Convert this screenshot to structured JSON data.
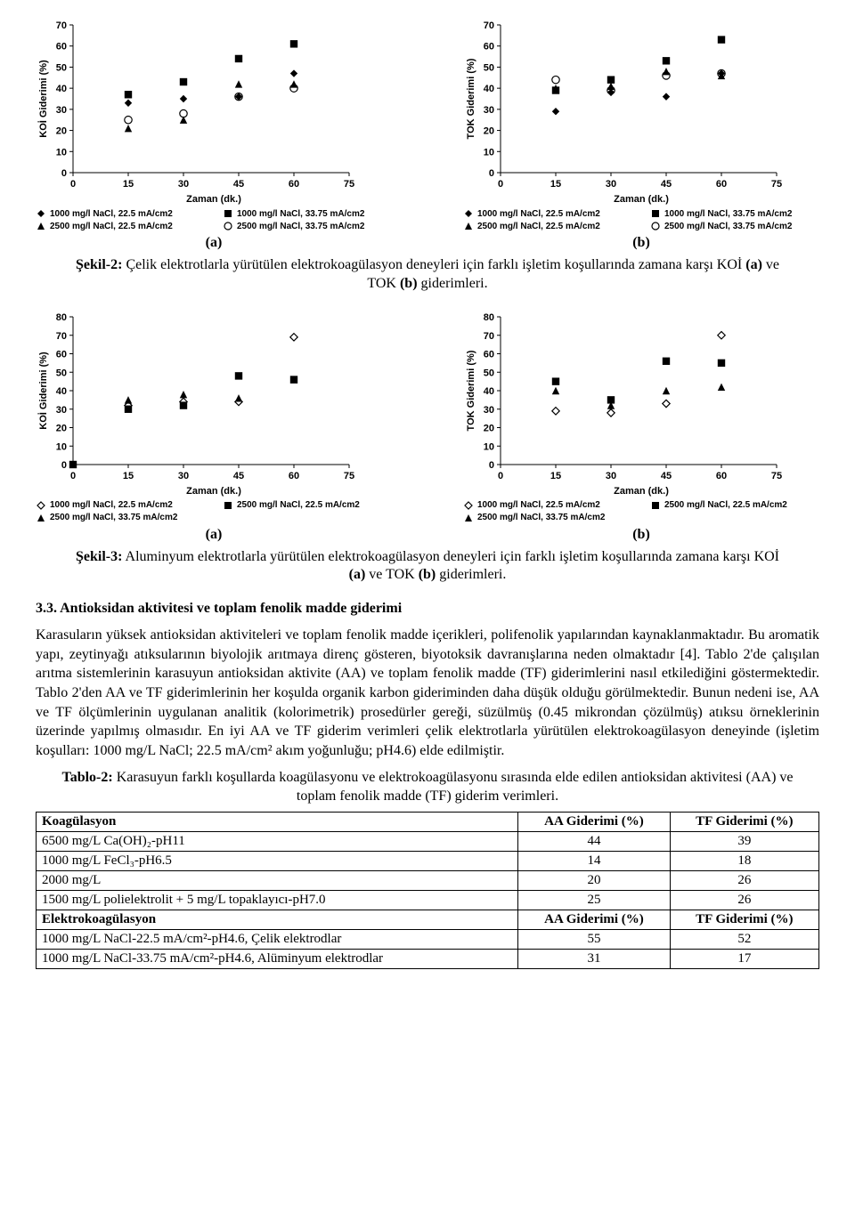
{
  "fig2": {
    "common": {
      "xlabel": "Zaman (dk.)",
      "xlim": [
        0,
        75
      ],
      "xticks": [
        0,
        15,
        30,
        45,
        60,
        75
      ],
      "ylim": [
        0,
        70
      ],
      "yticks": [
        0,
        10,
        20,
        30,
        40,
        50,
        60,
        70
      ],
      "tick_fontsize": 11,
      "label_fontsize": 11,
      "background": "#ffffff",
      "axis_color": "#000000",
      "marker_size": 6
    },
    "charts": [
      {
        "sublabel": "(a)",
        "ylabel": "KOİ Giderimi (%)",
        "series": [
          {
            "label": "1000 mg/l NaCl, 22.5 mA/cm2",
            "marker": "diamond-filled",
            "points": [
              [
                15,
                33
              ],
              [
                30,
                35
              ],
              [
                45,
                36
              ],
              [
                60,
                47
              ]
            ]
          },
          {
            "label": "1000 mg/l NaCl, 33.75 mA/cm2",
            "marker": "square-filled",
            "points": [
              [
                15,
                37
              ],
              [
                30,
                43
              ],
              [
                45,
                54
              ],
              [
                60,
                61
              ]
            ]
          },
          {
            "label": "2500 mg/l NaCl, 22.5 mA/cm2",
            "marker": "triangle-filled",
            "points": [
              [
                15,
                21
              ],
              [
                30,
                25
              ],
              [
                45,
                42
              ],
              [
                60,
                42
              ]
            ]
          },
          {
            "label": "2500 mg/l NaCl, 33.75 mA/cm2",
            "marker": "circle-open",
            "points": [
              [
                15,
                25
              ],
              [
                30,
                28
              ],
              [
                45,
                36
              ],
              [
                60,
                40
              ]
            ]
          }
        ]
      },
      {
        "sublabel": "(b)",
        "ylabel": "TOK Giderimi (%)",
        "series": [
          {
            "label": "1000 mg/l NaCl, 22.5 mA/cm2",
            "marker": "diamond-filled",
            "points": [
              [
                15,
                29
              ],
              [
                30,
                38
              ],
              [
                45,
                36
              ],
              [
                60,
                47
              ]
            ]
          },
          {
            "label": "1000 mg/l NaCl, 33.75 mA/cm2",
            "marker": "square-filled",
            "points": [
              [
                15,
                39
              ],
              [
                30,
                44
              ],
              [
                45,
                53
              ],
              [
                60,
                63
              ]
            ]
          },
          {
            "label": "2500 mg/l NaCl, 22.5 mA/cm2",
            "marker": "triangle-filled",
            "points": [
              [
                15,
                40
              ],
              [
                30,
                41
              ],
              [
                45,
                48
              ],
              [
                60,
                46
              ]
            ]
          },
          {
            "label": "2500 mg/l NaCl, 33.75 mA/cm2",
            "marker": "circle-open",
            "points": [
              [
                15,
                44
              ],
              [
                30,
                39
              ],
              [
                45,
                46
              ],
              [
                60,
                47
              ]
            ]
          }
        ]
      }
    ],
    "caption_prefix": "Şekil-2:",
    "caption_body": " Çelik elektrotlarla yürütülen elektrokoagülasyon deneyleri için farklı işletim koşullarında zamana karşı KOİ ",
    "caption_mid1": "(a)",
    "caption_mid2": " ve TOK ",
    "caption_mid3": "(b)",
    "caption_end": " giderimleri."
  },
  "fig3": {
    "common": {
      "xlabel": "Zaman (dk.)",
      "xlim": [
        0,
        75
      ],
      "xticks": [
        0,
        15,
        30,
        45,
        60,
        75
      ],
      "ylim": [
        0,
        80
      ],
      "yticks": [
        0,
        10,
        20,
        30,
        40,
        50,
        60,
        70,
        80
      ],
      "tick_fontsize": 11,
      "label_fontsize": 11,
      "background": "#ffffff",
      "axis_color": "#000000",
      "marker_size": 6
    },
    "charts": [
      {
        "sublabel": "(a)",
        "ylabel": "KOİ Giderimi (%)",
        "series": [
          {
            "label": "1000 mg/l NaCl, 22.5 mA/cm2",
            "marker": "diamond-open",
            "points": [
              [
                15,
                32
              ],
              [
                30,
                34
              ],
              [
                45,
                34
              ],
              [
                60,
                69
              ]
            ]
          },
          {
            "label": "2500 mg/l NaCl, 22.5 mA/cm2",
            "marker": "square-filled",
            "points": [
              [
                0,
                0
              ],
              [
                15,
                30
              ],
              [
                30,
                32
              ],
              [
                45,
                48
              ],
              [
                60,
                46
              ]
            ]
          },
          {
            "label": "2500 mg/l NaCl, 33.75 mA/cm2",
            "marker": "triangle-filled",
            "points": [
              [
                15,
                35
              ],
              [
                30,
                38
              ],
              [
                45,
                36
              ],
              [
                60,
                46
              ]
            ]
          }
        ]
      },
      {
        "sublabel": "(b)",
        "ylabel": "TOK Giderimi (%)",
        "series": [
          {
            "label": "1000 mg/l NaCl, 22.5 mA/cm2",
            "marker": "diamond-open",
            "points": [
              [
                15,
                29
              ],
              [
                30,
                28
              ],
              [
                45,
                33
              ],
              [
                60,
                70
              ]
            ]
          },
          {
            "label": "2500 mg/l NaCl, 22.5 mA/cm2",
            "marker": "square-filled",
            "points": [
              [
                15,
                45
              ],
              [
                30,
                35
              ],
              [
                45,
                56
              ],
              [
                60,
                55
              ]
            ]
          },
          {
            "label": "2500 mg/l NaCl, 33.75 mA/cm2",
            "marker": "triangle-filled",
            "points": [
              [
                15,
                40
              ],
              [
                30,
                32
              ],
              [
                45,
                40
              ],
              [
                60,
                42
              ]
            ]
          }
        ]
      }
    ],
    "caption_prefix": "Şekil-3:",
    "caption_body": " Aluminyum elektrotlarla yürütülen elektrokoagülasyon deneyleri için farklı işletim koşullarında zamana karşı KOİ ",
    "caption_mid1": "(a)",
    "caption_mid2": " ve TOK ",
    "caption_mid3": "(b)",
    "caption_end": " giderimleri."
  },
  "section_heading": "3.3. Antioksidan aktivitesi ve toplam fenolik madde giderimi",
  "paragraph": "Karasuların yüksek antioksidan aktiviteleri ve toplam fenolik madde içerikleri, polifenolik yapılarından kaynaklanmaktadır. Bu aromatik yapı, zeytinyağı atıksularının biyolojik arıtmaya direnç gösteren, biyotoksik davranışlarına neden olmaktadır [4]. Tablo 2'de çalışılan arıtma sistemlerinin karasuyun antioksidan aktivite (AA) ve toplam fenolik madde (TF) giderimlerini nasıl etkilediğini göstermektedir. Tablo 2'den AA ve TF giderimlerinin her koşulda organik karbon gideriminden daha düşük olduğu görülmektedir. Bunun nedeni ise, AA ve TF ölçümlerinin uygulanan analitik (kolorimetrik) prosedürler gereği, süzülmüş (0.45 mikrondan çözülmüş) atıksu örneklerinin üzerinde yapılmış olmasıdır. En iyi AA ve TF giderim verimleri çelik elektrotlarla yürütülen elektrokoagülasyon deneyinde (işletim koşulları: 1000 mg/L NaCl; 22.5 mA/cm² akım yoğunluğu; pH4.6) elde edilmiştir.",
  "table2": {
    "caption_prefix": "Tablo-2:",
    "caption_body": " Karasuyun farklı koşullarda koagülasyonu ve elektrokoagülasyonu sırasında elde edilen antioksidan aktivitesi (AA) ve toplam fenolik madde (TF) giderim verimleri.",
    "header1": [
      "Koagülasyon",
      "AA Giderimi (%)",
      "TF Giderimi (%)"
    ],
    "rows1": [
      {
        "label": "6500 mg/L Ca(OH)₂-pH11",
        "aa": "44",
        "tf": "39"
      },
      {
        "label": "1000 mg/L FeCl₃-pH6.5",
        "aa": "14",
        "tf": "18"
      },
      {
        "label": "2000 mg/L",
        "aa": "20",
        "tf": "26"
      },
      {
        "label": "1500 mg/L polielektrolit + 5 mg/L topaklayıcı-pH7.0",
        "aa": "25",
        "tf": "26"
      }
    ],
    "header2": [
      "Elektrokoagülasyon",
      "AA Giderimi (%)",
      "TF Giderimi (%)"
    ],
    "rows2": [
      {
        "label": "1000 mg/L NaCl-22.5 mA/cm²-pH4.6, Çelik elektrodlar",
        "aa": "55",
        "tf": "52"
      },
      {
        "label": "1000 mg/L NaCl-33.75 mA/cm²-pH4.6, Alüminyum elektrodlar",
        "aa": "31",
        "tf": "17"
      }
    ]
  }
}
